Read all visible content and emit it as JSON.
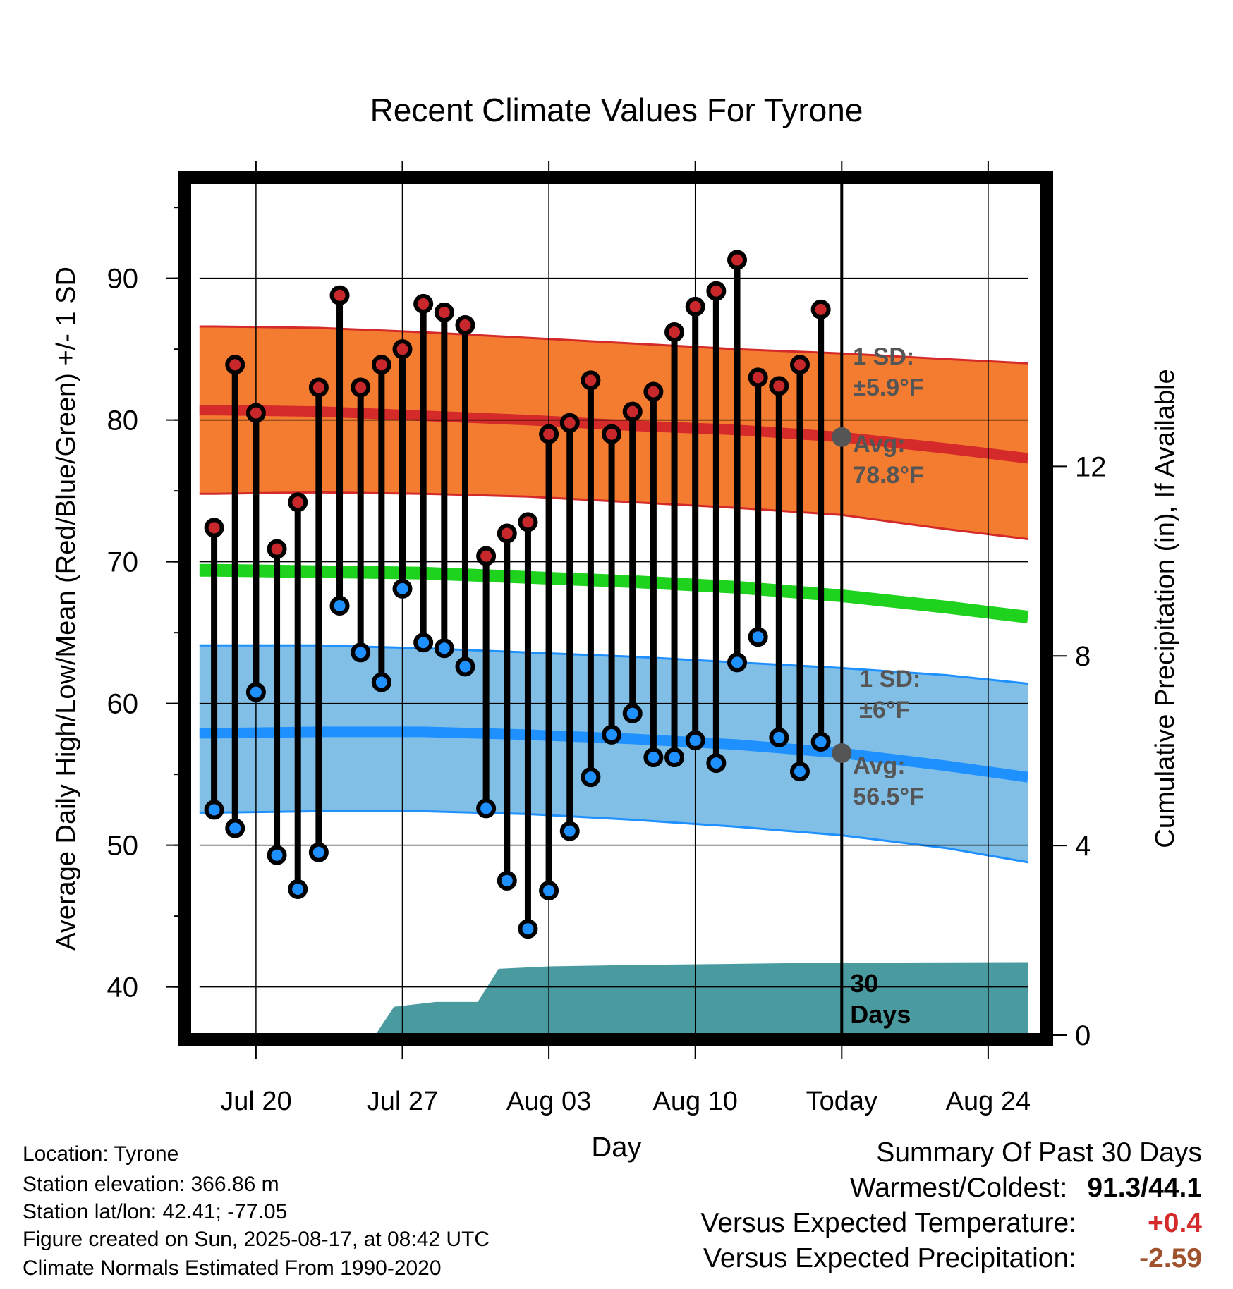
{
  "chart_data": {
    "type": "line",
    "title": "Recent Climate Values For Tyrone",
    "xlabel": "Day",
    "ylabel": "Average Daily High/Low/Mean (Red/Blue/Green) +/- 1 SD",
    "y2label": "Cumulative Precipitation (in), If Available",
    "xtick_labels": [
      "Jul 20",
      "Jul 27",
      "Aug 03",
      "Aug 10",
      "Today",
      "Aug 24"
    ],
    "xtick_days": [
      2,
      9,
      16,
      23,
      30,
      37
    ],
    "ylim": [
      36.6,
      96.8
    ],
    "yticks": [
      40,
      50,
      60,
      70,
      80,
      90
    ],
    "y2lim": [
      0,
      18
    ],
    "y2ticks": [
      0,
      4,
      8,
      12
    ],
    "xlim": [
      -1.2,
      39.6
    ],
    "grid": true,
    "today_day": 30,
    "days": [
      0,
      1,
      2,
      3,
      4,
      5,
      6,
      7,
      8,
      9,
      10,
      11,
      12,
      13,
      14,
      15,
      16,
      17,
      18,
      19,
      20,
      21,
      22,
      23,
      24,
      25,
      26,
      27,
      28,
      29
    ],
    "series": [
      {
        "name": "High",
        "color": "#c8282c",
        "values": [
          72.4,
          83.9,
          80.5,
          70.9,
          74.2,
          82.3,
          88.8,
          82.3,
          83.9,
          85.0,
          88.2,
          87.6,
          86.7,
          70.4,
          72.0,
          72.8,
          79.0,
          79.8,
          82.8,
          79.0,
          80.6,
          82.0,
          86.2,
          88.0,
          89.1,
          91.3,
          83.0,
          82.4,
          83.9,
          87.8
        ]
      },
      {
        "name": "Low",
        "color": "#1e90ff",
        "values": [
          52.5,
          51.2,
          60.8,
          49.3,
          46.9,
          49.5,
          66.9,
          63.6,
          61.5,
          68.1,
          64.3,
          63.9,
          62.6,
          52.6,
          47.5,
          44.1,
          46.8,
          51.0,
          54.8,
          57.8,
          59.3,
          56.2,
          56.2,
          57.4,
          55.8,
          62.9,
          64.7,
          57.6,
          55.2,
          57.3
        ]
      }
    ],
    "normals": {
      "high_avg": {
        "x": [
          -0.7,
          0,
          5,
          10,
          15,
          20,
          25,
          30,
          35,
          38.9
        ],
        "y": [
          80.7,
          80.7,
          80.6,
          80.3,
          80.0,
          79.6,
          79.3,
          78.8,
          78.0,
          77.3
        ]
      },
      "high_sd": 5.9,
      "high_band_upper": {
        "x": [
          -0.7,
          0,
          5,
          10,
          15,
          20,
          25,
          30,
          35,
          38.9
        ],
        "y": [
          86.6,
          86.6,
          86.5,
          86.2,
          85.8,
          85.4,
          85.0,
          84.7,
          84.3,
          84.0
        ]
      },
      "high_band_lower": {
        "x": [
          -0.7,
          0,
          5,
          10,
          15,
          20,
          25,
          30,
          35,
          38.9
        ],
        "y": [
          74.8,
          74.8,
          74.9,
          74.8,
          74.6,
          74.2,
          73.8,
          73.3,
          72.3,
          71.6
        ]
      },
      "mean_avg": {
        "x": [
          -0.7,
          0,
          5,
          10,
          15,
          20,
          25,
          30,
          35,
          38.9
        ],
        "y": [
          69.4,
          69.4,
          69.3,
          69.2,
          68.9,
          68.6,
          68.2,
          67.6,
          66.8,
          66.1
        ]
      },
      "low_avg": {
        "x": [
          -0.7,
          0,
          5,
          10,
          15,
          20,
          25,
          30,
          35,
          38.9
        ],
        "y": [
          57.9,
          57.9,
          58.0,
          58.0,
          57.8,
          57.5,
          57.1,
          56.5,
          55.6,
          54.8
        ]
      },
      "low_sd": 6,
      "low_band_upper": {
        "x": [
          -0.7,
          0,
          5,
          10,
          15,
          20,
          25,
          30,
          35,
          38.9
        ],
        "y": [
          64.1,
          64.1,
          64.1,
          63.9,
          63.6,
          63.3,
          62.9,
          62.5,
          62.0,
          61.4
        ]
      },
      "low_band_lower": {
        "x": [
          -0.7,
          0,
          5,
          10,
          15,
          20,
          25,
          30,
          35,
          38.9
        ],
        "y": [
          52.3,
          52.3,
          52.4,
          52.4,
          52.2,
          51.8,
          51.3,
          50.7,
          49.8,
          48.8
        ]
      }
    },
    "precipitation": {
      "x": [
        7.7,
        8.6,
        10.6,
        12.6,
        13.6,
        16,
        20,
        24,
        28,
        30,
        38.9
      ],
      "y": [
        0,
        0.6,
        0.7,
        0.7,
        1.4,
        1.45,
        1.48,
        1.5,
        1.52,
        1.53,
        1.54
      ]
    },
    "annotations": {
      "high_sd_label": "1 SD:",
      "high_sd_value": "±5.9°F",
      "high_avg_label": "Avg:",
      "high_avg_value": "78.8°F",
      "low_sd_label": "1 SD:",
      "low_sd_value": "±6°F",
      "low_avg_label": "Avg:",
      "low_avg_value": "56.5°F",
      "window_label_1": "30",
      "window_label_2": "Days"
    },
    "today_markers": {
      "high_avg": 78.8,
      "low_avg": 56.5
    },
    "colors": {
      "high_band": "#f47c30",
      "high_line": "#d42a2a",
      "low_band": "#82bfe6",
      "low_line": "#1e90ff",
      "mean_line": "#1ed21e",
      "precip": "#4a9ba0",
      "annotation": "#555555",
      "marker": "#555555"
    }
  },
  "footer": {
    "location": "Location: Tyrone",
    "elevation": "Station elevation: 366.86 m",
    "latlon": "Station lat/lon: 42.41; -77.05",
    "created": "Figure created on Sun, 2025-08-17, at 08:42 UTC",
    "normals": "Climate Normals Estimated From 1990-2020"
  },
  "summary": {
    "title": "Summary Of Past 30 Days",
    "warm_cold_label": "Warmest/Coldest:",
    "warm_cold_value": "91.3/44.1",
    "temp_label": "Versus Expected Temperature:",
    "temp_value": "+0.4",
    "temp_color": "#d42a2a",
    "precip_label": "Versus Expected Precipitation:",
    "precip_value": "-2.59",
    "precip_color": "#a0522d"
  }
}
